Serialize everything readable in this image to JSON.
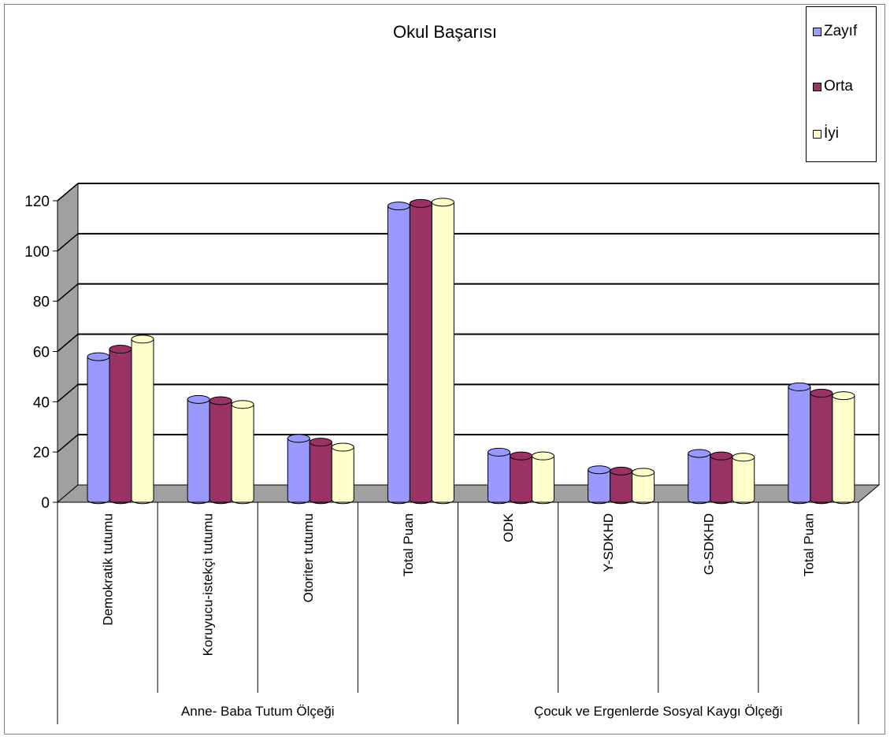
{
  "chart_data": {
    "type": "bar",
    "title": "Okul Başarısı",
    "categories": [
      "Demokratik tutumu",
      "Koruyucu-istekçi tutumu",
      "Otoriter tutumu",
      "Total Puan",
      "ODK",
      "Y-SDKHD",
      "G-SDKHD",
      "Total Puan"
    ],
    "groups": [
      {
        "label": "Anne- Baba Tutum Ölçeği",
        "span": [
          0,
          3
        ]
      },
      {
        "label": "Çocuk ve Ergenlerde Sosyal Kaygı Ölçeği",
        "span": [
          4,
          7
        ]
      }
    ],
    "series": [
      {
        "name": "Zayıf",
        "values": [
          55,
          38,
          22.5,
          115,
          17,
          10,
          16.5,
          43
        ]
      },
      {
        "name": "Orta",
        "values": [
          58,
          37.5,
          21,
          116,
          15.5,
          9.5,
          15.5,
          40.5
        ]
      },
      {
        "name": "İyi",
        "values": [
          62,
          36,
          19,
          116.5,
          15.5,
          9,
          15,
          39.5
        ]
      }
    ],
    "colors": [
      "#9999ff",
      "#993366",
      "#ffffcc"
    ],
    "yticks": [
      0,
      20,
      40,
      60,
      80,
      100,
      120
    ],
    "ylim": [
      0,
      120
    ],
    "grid": true,
    "legend_position": "top-right",
    "xlabel": "",
    "ylabel": ""
  }
}
